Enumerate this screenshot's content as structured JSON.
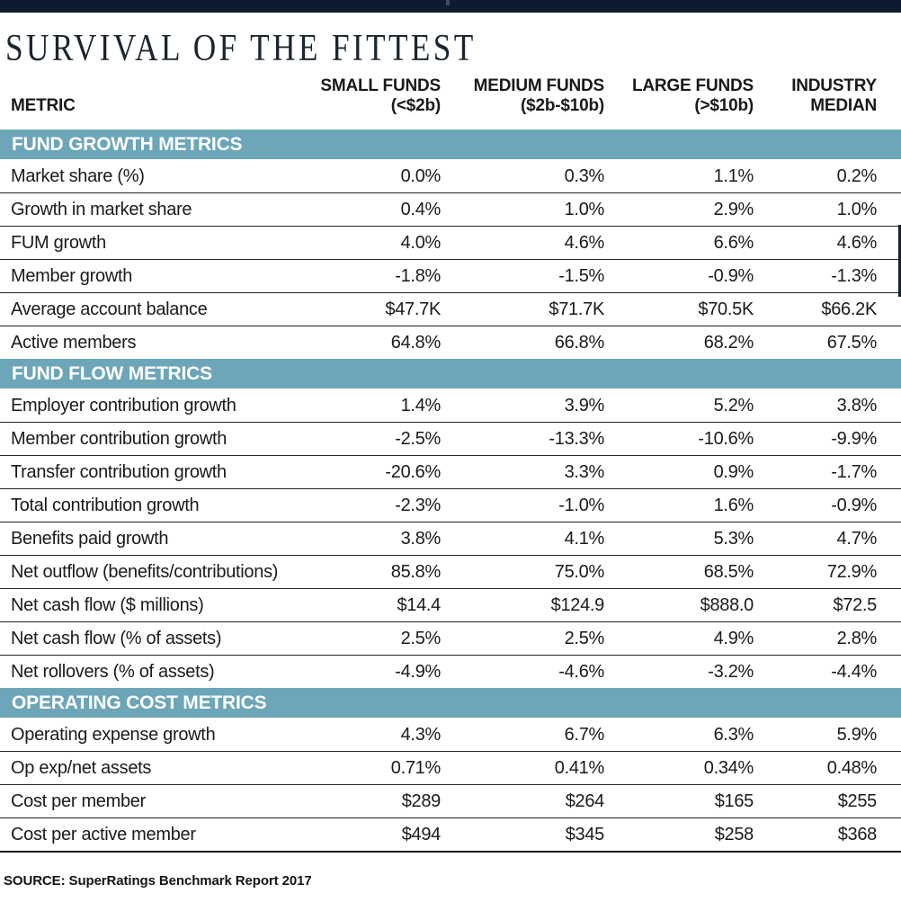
{
  "title": "SURVIVAL OF THE FITTEST",
  "source": "SOURCE: SuperRatings Benchmark Report 2017",
  "colors": {
    "top_bar": "#0c1b2e",
    "section_band": "#6da5b9",
    "title_text": "#1b2530",
    "body_text": "#1c1c1c"
  },
  "chart_data": {
    "type": "table",
    "title": "SURVIVAL OF THE FITTEST",
    "metric_header": "METRIC",
    "columns": [
      {
        "line1": "SMALL FUNDS",
        "line2": "(<$2b)"
      },
      {
        "line1": "MEDIUM FUNDS",
        "line2": "($2b-$10b)"
      },
      {
        "line1": "LARGE FUNDS",
        "line2": "(>$10b)"
      },
      {
        "line1": "INDUSTRY",
        "line2": "MEDIAN"
      }
    ],
    "sections": [
      {
        "label": "FUND GROWTH METRICS",
        "rows": [
          {
            "metric": "Market share (%)",
            "values": [
              "0.0%",
              "0.3%",
              "1.1%",
              "0.2%"
            ]
          },
          {
            "metric": "Growth in market share",
            "values": [
              "0.4%",
              "1.0%",
              "2.9%",
              "1.0%"
            ]
          },
          {
            "metric": "FUM growth",
            "values": [
              "4.0%",
              "4.6%",
              "6.6%",
              "4.6%"
            ]
          },
          {
            "metric": "Member growth",
            "values": [
              "-1.8%",
              "-1.5%",
              "-0.9%",
              "-1.3%"
            ]
          },
          {
            "metric": "Average account balance",
            "values": [
              "$47.7K",
              "$71.7K",
              "$70.5K",
              "$66.2K"
            ]
          },
          {
            "metric": "Active members",
            "values": [
              "64.8%",
              "66.8%",
              "68.2%",
              "67.5%"
            ]
          }
        ]
      },
      {
        "label": "FUND FLOW METRICS",
        "rows": [
          {
            "metric": "Employer contribution growth",
            "values": [
              "1.4%",
              "3.9%",
              "5.2%",
              "3.8%"
            ]
          },
          {
            "metric": "Member contribution growth",
            "values": [
              "-2.5%",
              "-13.3%",
              "-10.6%",
              "-9.9%"
            ]
          },
          {
            "metric": "Transfer contribution growth",
            "values": [
              "-20.6%",
              "3.3%",
              "0.9%",
              "-1.7%"
            ]
          },
          {
            "metric": "Total contribution growth",
            "values": [
              "-2.3%",
              "-1.0%",
              "1.6%",
              "-0.9%"
            ]
          },
          {
            "metric": "Benefits paid growth",
            "values": [
              "3.8%",
              "4.1%",
              "5.3%",
              "4.7%"
            ]
          },
          {
            "metric": "Net outflow (benefits/contributions)",
            "values": [
              "85.8%",
              "75.0%",
              "68.5%",
              "72.9%"
            ]
          },
          {
            "metric": "Net cash flow ($ millions)",
            "values": [
              "$14.4",
              "$124.9",
              "$888.0",
              "$72.5"
            ]
          },
          {
            "metric": "Net cash flow (% of assets)",
            "values": [
              "2.5%",
              "2.5%",
              "4.9%",
              "2.8%"
            ]
          },
          {
            "metric": "Net rollovers (% of assets)",
            "values": [
              "-4.9%",
              "-4.6%",
              "-3.2%",
              "-4.4%"
            ]
          }
        ]
      },
      {
        "label": "OPERATING COST METRICS",
        "rows": [
          {
            "metric": "Operating expense growth",
            "values": [
              "4.3%",
              "6.7%",
              "6.3%",
              "5.9%"
            ]
          },
          {
            "metric": "Op exp/net assets",
            "values": [
              "0.71%",
              "0.41%",
              "0.34%",
              "0.48%"
            ]
          },
          {
            "metric": "Cost per member",
            "values": [
              "$289",
              "$264",
              "$165",
              "$255"
            ]
          },
          {
            "metric": "Cost per active member",
            "values": [
              "$494",
              "$345",
              "$258",
              "$368"
            ]
          }
        ]
      }
    ]
  }
}
